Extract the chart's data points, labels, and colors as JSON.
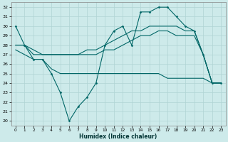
{
  "xlabel": "Humidex (Indice chaleur)",
  "bg_color": "#cdeaea",
  "grid_color": "#b0d4d4",
  "line_color": "#006666",
  "xlim": [
    -0.5,
    23.5
  ],
  "ylim": [
    19.5,
    32.5
  ],
  "yticks": [
    20,
    21,
    22,
    23,
    24,
    25,
    26,
    27,
    28,
    29,
    30,
    31,
    32
  ],
  "xticks": [
    0,
    1,
    2,
    3,
    4,
    5,
    6,
    7,
    8,
    9,
    10,
    11,
    12,
    13,
    14,
    15,
    16,
    17,
    18,
    19,
    20,
    21,
    22,
    23
  ],
  "series1_x": [
    0,
    1,
    2,
    3,
    4,
    5,
    6,
    7,
    8,
    9,
    10,
    11,
    12,
    13,
    14,
    15,
    16,
    17,
    18,
    19,
    20,
    21,
    22,
    23
  ],
  "series1_y": [
    30,
    28,
    26.5,
    26.5,
    25,
    23,
    20,
    21.5,
    22.5,
    24,
    28,
    29.5,
    30,
    28,
    31.5,
    31.5,
    32,
    32,
    31,
    30,
    29.5,
    27,
    24,
    24
  ],
  "series2_x": [
    0,
    1,
    2,
    3,
    4,
    5,
    6,
    7,
    8,
    9,
    10,
    11,
    12,
    13,
    14,
    15,
    16,
    17,
    18,
    19,
    20,
    21,
    22,
    23
  ],
  "series2_y": [
    27.5,
    27,
    26.5,
    26.5,
    25.5,
    25,
    25,
    25,
    25,
    25,
    25,
    25,
    25,
    25,
    25,
    25,
    25,
    24.5,
    24.5,
    24.5,
    24.5,
    24.5,
    24,
    24
  ],
  "series3_x": [
    0,
    1,
    2,
    3,
    4,
    5,
    6,
    7,
    8,
    9,
    10,
    11,
    12,
    13,
    14,
    15,
    16,
    17,
    18,
    19,
    20,
    21,
    22,
    23
  ],
  "series3_y": [
    28,
    28,
    27.5,
    27,
    27,
    27,
    27,
    27,
    27,
    27,
    27.5,
    27.5,
    28,
    28.5,
    29,
    29,
    29.5,
    29.5,
    29,
    29,
    29,
    27,
    24,
    24
  ],
  "series4_x": [
    0,
    1,
    2,
    3,
    4,
    5,
    6,
    7,
    8,
    9,
    10,
    11,
    12,
    13,
    14,
    15,
    16,
    17,
    18,
    19,
    20,
    21,
    22,
    23
  ],
  "series4_y": [
    28,
    28,
    27,
    27,
    27,
    27,
    27,
    27,
    27.5,
    27.5,
    28,
    28.5,
    29,
    29.5,
    29.5,
    30,
    30,
    30,
    30,
    29.5,
    29.5,
    27,
    24,
    24
  ]
}
